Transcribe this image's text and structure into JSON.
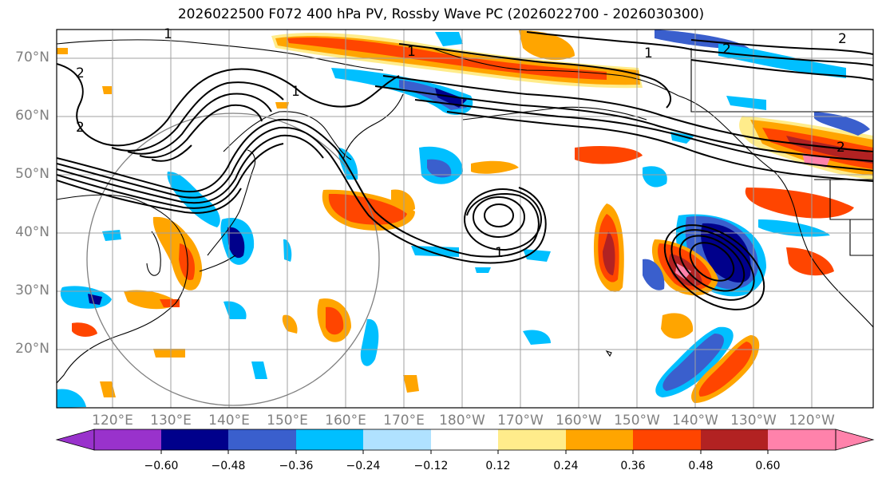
{
  "title": "2026022500 F072 400 hPa PV, Rossby Wave PC (2026022700 - 2026030300)",
  "lat_labels": [
    "70°N",
    "60°N",
    "50°N",
    "40°N",
    "30°N",
    "20°N"
  ],
  "lon_labels": [
    "120°E",
    "130°E",
    "140°E",
    "150°E",
    "160°E",
    "170°E",
    "180°W",
    "170°W",
    "160°W",
    "150°W",
    "140°W",
    "130°W",
    "120°W"
  ],
  "contour_labels": [
    "2",
    "2",
    "1",
    "1",
    "1",
    "2",
    "1",
    "2",
    "2",
    "1"
  ],
  "colorbar": {
    "ticks": [
      "−0.60",
      "−0.48",
      "−0.36",
      "−0.24",
      "−0.12",
      "0.12",
      "0.24",
      "0.36",
      "0.48",
      "0.60"
    ],
    "colors": [
      "#9932CC",
      "#00008B",
      "#3A5FCD",
      "#00BFFF",
      "#B0E2FF",
      "#FFFFFF",
      "#FFEC8B",
      "#FFA500",
      "#FF4500",
      "#B22222",
      "#FF82AB"
    ]
  },
  "map_colors": {
    "coast": "#000000",
    "grid": "#a0a0a0",
    "circle": "#808080"
  }
}
